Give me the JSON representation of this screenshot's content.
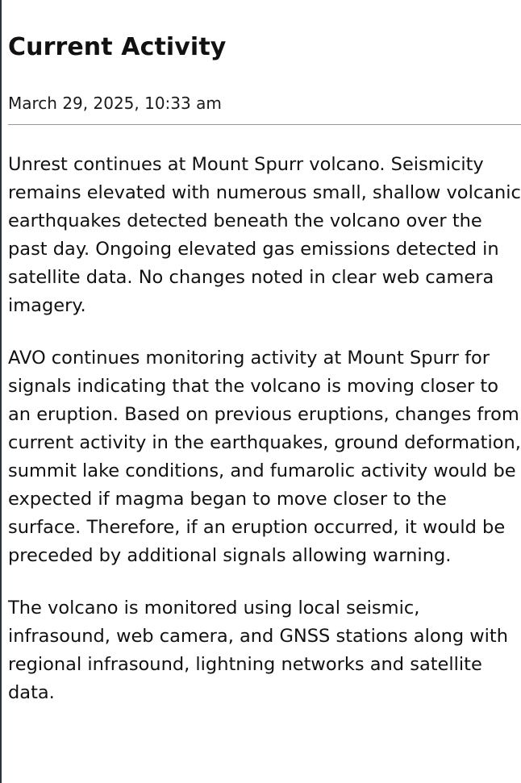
{
  "page": {
    "title": "Current Activity",
    "timestamp": "March 29, 2025, 10:33 am"
  },
  "paragraphs": [
    "Unrest continues at Mount Spurr volcano. Seismicity remains elevated with numerous small, shallow volcanic earthquakes detected beneath the volcano over the past day. Ongoing elevated gas emissions detected in satellite data. No changes noted in clear web camera imagery.",
    "AVO continues monitoring activity at Mount Spurr for signals indicating that the volcano is moving closer to an eruption. Based on previous eruptions, changes from current activity in the earthquakes, ground deformation, summit lake conditions, and fumarolic activity would be expected if magma began to move closer to the surface. Therefore, if an eruption occurred, it would be preceded by additional signals allowing warning.",
    "The volcano is monitored using local seismic, infrasound, web camera, and GNSS stations along with regional infrasound, lightning networks and satellite data."
  ]
}
